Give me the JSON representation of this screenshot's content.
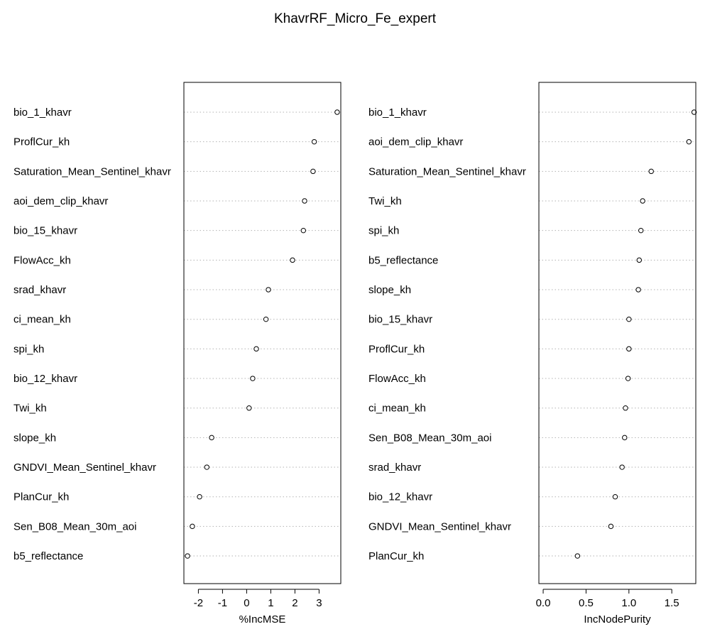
{
  "title": "KhavrRF_Micro_Fe_expert",
  "chart_data": [
    {
      "type": "scatter",
      "xlabel": "%IncMSE",
      "ylabel": "",
      "xlim": [
        -2.6,
        3.9
      ],
      "xticks": [
        -2,
        -1,
        0,
        1,
        2,
        3
      ],
      "tick_labels": [
        "-2",
        "-1",
        "0",
        "1",
        "2",
        "3"
      ],
      "grid": "dotted horizontal lines",
      "categories": [
        "bio_1_khavr",
        "ProflCur_kh",
        "Saturation_Mean_Sentinel_khavr",
        "aoi_dem_clip_khavr",
        "bio_15_khavr",
        "FlowAcc_kh",
        "srad_khavr",
        "ci_mean_kh",
        "spi_kh",
        "bio_12_khavr",
        "Twi_kh",
        "slope_kh",
        "GNDVI_Mean_Sentinel_khavr",
        "PlanCur_kh",
        "Sen_B08_Mean_30m_aoi",
        "b5_reflectance"
      ],
      "values": [
        3.75,
        2.8,
        2.75,
        2.4,
        2.35,
        1.9,
        0.9,
        0.8,
        0.4,
        0.25,
        0.1,
        -1.45,
        -1.65,
        -1.95,
        -2.25,
        -2.45
      ]
    },
    {
      "type": "scatter",
      "xlabel": "IncNodePurity",
      "ylabel": "",
      "xlim": [
        -0.05,
        1.78
      ],
      "xticks": [
        0.0,
        0.5,
        1.0,
        1.5
      ],
      "tick_labels": [
        "0.0",
        "0.5",
        "1.0",
        "1.5"
      ],
      "grid": "dotted horizontal lines",
      "categories": [
        "bio_1_khavr",
        "aoi_dem_clip_khavr",
        "Saturation_Mean_Sentinel_khavr",
        "Twi_kh",
        "spi_kh",
        "b5_reflectance",
        "slope_kh",
        "bio_15_khavr",
        "ProflCur_kh",
        "FlowAcc_kh",
        "ci_mean_kh",
        "Sen_B08_Mean_30m_aoi",
        "srad_khavr",
        "bio_12_khavr",
        "GNDVI_Mean_Sentinel_khavr",
        "PlanCur_kh"
      ],
      "values": [
        1.76,
        1.7,
        1.26,
        1.16,
        1.14,
        1.12,
        1.11,
        1.0,
        1.0,
        0.99,
        0.96,
        0.95,
        0.92,
        0.84,
        0.79,
        0.4
      ]
    }
  ]
}
